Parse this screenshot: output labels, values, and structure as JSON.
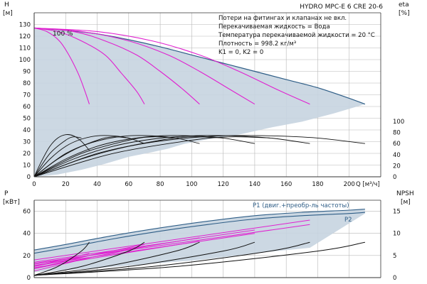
{
  "colors": {
    "envelope_fill": "#c7d4e0",
    "envelope_edge": "#2e5d86",
    "pump_curve": "#e020d0",
    "efficiency_curve": "#111111",
    "npsh_curve": "#111111",
    "grid": "#b8b8b8",
    "axis": "#333333"
  },
  "chart_data": [
    {
      "type": "line",
      "panel": "head",
      "title": "HYDRO MPC-E 6 CRE 20-6",
      "notes": [
        "Потери на фитингах и клапанах не вкл.",
        "Перекачиваемая жидкость = Вода",
        "Температура перекачиваемой жидкости = 20 °C",
        "Плотность = 998.2 кг/м³",
        "K1 = 0, K2 = 0"
      ],
      "curve_label": "100 %",
      "xlabel": "Q [м³/ч]",
      "ylabel_left_name": "H",
      "ylabel_left_unit": "[м]",
      "ylabel_right_name": "eta",
      "ylabel_right_unit": "[%]",
      "xlim": [
        0,
        220
      ],
      "ylim_left": [
        0,
        140
      ],
      "ylim_right_eta": [
        0,
        100
      ],
      "x_ticks": [
        "0",
        "20",
        "40",
        "60",
        "80",
        "100",
        "120",
        "140",
        "160",
        "180",
        "200"
      ],
      "y_ticks_left": [
        "0",
        "10",
        "20",
        "30",
        "40",
        "50",
        "60",
        "70",
        "80",
        "90",
        "100",
        "110",
        "120",
        "130"
      ],
      "y_ticks_right": [
        "0",
        "20",
        "40",
        "60",
        "80",
        "100"
      ],
      "grid": true,
      "envelope": {
        "upper_x": [
          0,
          20,
          40,
          60,
          80,
          100,
          120,
          140,
          160,
          180,
          200,
          210
        ],
        "upper_y": [
          127,
          125,
          122,
          117,
          111,
          104,
          97,
          90,
          83,
          76,
          67,
          62
        ],
        "lower_x": [
          210,
          190,
          170,
          150,
          130,
          110,
          95,
          85,
          75,
          60,
          45,
          30,
          15,
          0
        ],
        "lower_y": [
          62,
          54,
          47,
          42,
          36,
          32,
          28,
          24,
          21,
          17,
          11,
          6,
          2,
          0
        ]
      },
      "series": [
        {
          "kind": "head",
          "x": [
            0,
            8,
            16,
            22,
            28,
            32,
            35
          ],
          "y": [
            127,
            124,
            116,
            104,
            88,
            74,
            62
          ]
        },
        {
          "kind": "head",
          "x": [
            0,
            15,
            30,
            45,
            55,
            65,
            70
          ],
          "y": [
            127,
            124,
            116,
            104,
            89,
            73,
            62
          ]
        },
        {
          "kind": "head",
          "x": [
            0,
            25,
            45,
            65,
            80,
            95,
            105
          ],
          "y": [
            127,
            124,
            116,
            104,
            90,
            74,
            62
          ]
        },
        {
          "kind": "head",
          "x": [
            0,
            30,
            60,
            85,
            105,
            125,
            140
          ],
          "y": [
            127,
            124,
            116,
            104,
            90,
            74,
            62
          ]
        },
        {
          "kind": "head",
          "x": [
            0,
            40,
            75,
            105,
            130,
            155,
            175
          ],
          "y": [
            127,
            124,
            116,
            104,
            90,
            74,
            62
          ]
        },
        {
          "kind": "eta",
          "x": [
            0,
            5,
            10,
            15,
            20,
            25,
            30,
            35
          ],
          "y": [
            0,
            30,
            55,
            70,
            76,
            74,
            64,
            48
          ]
        },
        {
          "kind": "eta",
          "x": [
            0,
            10,
            20,
            30,
            40,
            50,
            60,
            70
          ],
          "y": [
            0,
            32,
            55,
            68,
            74,
            74,
            70,
            60
          ]
        },
        {
          "kind": "eta",
          "x": [
            0,
            15,
            30,
            45,
            60,
            75,
            90,
            105
          ],
          "y": [
            0,
            32,
            55,
            68,
            74,
            74,
            70,
            60
          ]
        },
        {
          "kind": "eta",
          "x": [
            0,
            20,
            40,
            60,
            80,
            100,
            120,
            140
          ],
          "y": [
            0,
            32,
            55,
            68,
            74,
            74,
            70,
            60
          ]
        },
        {
          "kind": "eta",
          "x": [
            0,
            25,
            50,
            75,
            100,
            125,
            150,
            175
          ],
          "y": [
            0,
            32,
            55,
            68,
            74,
            74,
            70,
            60
          ]
        },
        {
          "kind": "eta",
          "x": [
            0,
            30,
            60,
            90,
            120,
            150,
            180,
            210
          ],
          "y": [
            0,
            32,
            55,
            68,
            74,
            74,
            70,
            60
          ]
        },
        {
          "kind": "eta",
          "x": [
            0,
            10,
            20,
            25,
            30
          ],
          "y": [
            0,
            42,
            66,
            72,
            70
          ]
        },
        {
          "kind": "eta",
          "x": [
            0,
            20,
            40,
            50,
            60
          ],
          "y": [
            0,
            42,
            66,
            72,
            70
          ]
        },
        {
          "kind": "eta",
          "x": [
            0,
            30,
            60,
            75,
            90
          ],
          "y": [
            0,
            42,
            66,
            72,
            70
          ]
        },
        {
          "kind": "eta",
          "x": [
            0,
            40,
            80,
            100,
            120
          ],
          "y": [
            0,
            42,
            66,
            72,
            70
          ]
        },
        {
          "kind": "eta",
          "x": [
            0,
            50,
            100,
            125,
            150
          ],
          "y": [
            0,
            42,
            66,
            72,
            70
          ]
        }
      ]
    },
    {
      "type": "line",
      "panel": "power_npsh",
      "ylabel_left_name": "P",
      "ylabel_left_unit": "[кВт]",
      "ylabel_right_name": "NPSH",
      "ylabel_right_unit": "[м]",
      "xlim": [
        0,
        220
      ],
      "ylim_left": [
        0,
        70
      ],
      "ylim_right": [
        0,
        17.5
      ],
      "y_ticks_left": [
        "0",
        "20",
        "40",
        "60"
      ],
      "y_ticks_right": [
        "0",
        "5",
        "10",
        "15"
      ],
      "grid": true,
      "labels": {
        "p1": "P1 (двиг.+преобр-ль частоты)",
        "p2": "P2"
      },
      "envelope": {
        "upper_x": [
          0,
          20,
          50,
          80,
          110,
          140,
          170,
          200,
          210
        ],
        "upper_y": [
          25,
          30,
          38,
          45,
          51,
          56,
          59,
          61,
          62
        ],
        "lower_x": [
          210,
          175,
          140,
          105,
          70,
          35,
          0
        ],
        "lower_y": [
          58,
          27,
          22,
          16,
          12,
          8,
          5
        ]
      },
      "series": [
        {
          "kind": "p1_top",
          "x": [
            0,
            20,
            50,
            80,
            110,
            140,
            170,
            200,
            210
          ],
          "y": [
            25,
            30,
            38,
            45,
            51,
            56,
            59,
            61,
            62
          ]
        },
        {
          "kind": "p2_top",
          "x": [
            0,
            20,
            50,
            80,
            110,
            140,
            170,
            200,
            210
          ],
          "y": [
            22,
            27,
            35,
            42,
            48,
            53,
            56,
            58,
            59
          ]
        },
        {
          "kind": "power",
          "x": [
            0,
            35
          ],
          "y": [
            10,
            22
          ]
        },
        {
          "kind": "power",
          "x": [
            0,
            35
          ],
          "y": [
            8,
            20
          ]
        },
        {
          "kind": "power",
          "x": [
            0,
            35
          ],
          "y": [
            6,
            18
          ]
        },
        {
          "kind": "power",
          "x": [
            0,
            70
          ],
          "y": [
            10,
            30
          ]
        },
        {
          "kind": "power",
          "x": [
            0,
            70
          ],
          "y": [
            8,
            28
          ]
        },
        {
          "kind": "power",
          "x": [
            0,
            105
          ],
          "y": [
            12,
            36
          ]
        },
        {
          "kind": "power",
          "x": [
            0,
            105
          ],
          "y": [
            9,
            33
          ]
        },
        {
          "kind": "power",
          "x": [
            0,
            140
          ],
          "y": [
            14,
            43
          ]
        },
        {
          "kind": "power",
          "x": [
            0,
            140
          ],
          "y": [
            11,
            40
          ]
        },
        {
          "kind": "power",
          "x": [
            0,
            175
          ],
          "y": [
            16,
            52
          ]
        },
        {
          "kind": "power",
          "x": [
            0,
            175
          ],
          "y": [
            13,
            48
          ]
        },
        {
          "kind": "npsh",
          "x": [
            0,
            15,
            30,
            35
          ],
          "y": [
            0.5,
            2.5,
            6,
            8
          ]
        },
        {
          "kind": "npsh",
          "x": [
            0,
            30,
            60,
            70
          ],
          "y": [
            0.5,
            2.5,
            6,
            8
          ]
        },
        {
          "kind": "npsh",
          "x": [
            0,
            45,
            90,
            105
          ],
          "y": [
            0.5,
            2.5,
            6,
            8
          ]
        },
        {
          "kind": "npsh",
          "x": [
            0,
            60,
            120,
            140
          ],
          "y": [
            0.5,
            2.5,
            6,
            8
          ]
        },
        {
          "kind": "npsh",
          "x": [
            0,
            75,
            150,
            175
          ],
          "y": [
            0.5,
            2.5,
            6,
            8
          ]
        },
        {
          "kind": "npsh",
          "x": [
            0,
            90,
            180,
            210
          ],
          "y": [
            0.5,
            2.5,
            6,
            8
          ]
        }
      ]
    }
  ]
}
